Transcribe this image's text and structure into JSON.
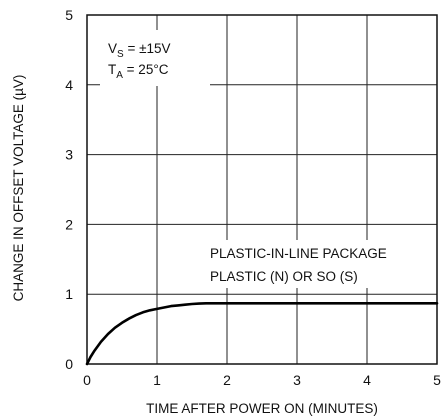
{
  "chart_data": {
    "type": "line",
    "title": "",
    "xlabel": "TIME AFTER POWER ON (MINUTES)",
    "ylabel": "CHANGE IN OFFSET VOLTAGE (µV)",
    "xlim": [
      0,
      5
    ],
    "ylim": [
      0,
      5
    ],
    "x_ticks": [
      "0",
      "1",
      "2",
      "3",
      "4",
      "5"
    ],
    "y_ticks": [
      "0",
      "1",
      "2",
      "3",
      "4",
      "5"
    ],
    "grid": true,
    "conditions": {
      "vs_prefix": "V",
      "vs_sub": "S",
      "vs_value": " = ±15V",
      "ta_prefix": "T",
      "ta_sub": "A",
      "ta_value": " = 25°C"
    },
    "annotation": {
      "line1": "PLASTIC-IN-LINE PACKAGE",
      "line2": "PLASTIC (N) OR SO (S)"
    },
    "series": [
      {
        "name": "",
        "x": [
          0,
          0.05,
          0.1,
          0.2,
          0.3,
          0.4,
          0.5,
          0.6,
          0.7,
          0.8,
          0.9,
          1.0,
          1.1,
          1.2,
          1.3,
          1.4,
          1.5,
          1.6,
          1.7,
          2.0,
          2.5,
          3.0,
          3.5,
          4.0,
          4.5,
          5.0
        ],
        "values": [
          0,
          0.1,
          0.18,
          0.32,
          0.43,
          0.52,
          0.59,
          0.65,
          0.7,
          0.74,
          0.77,
          0.79,
          0.81,
          0.83,
          0.84,
          0.85,
          0.86,
          0.865,
          0.87,
          0.87,
          0.87,
          0.87,
          0.87,
          0.87,
          0.87,
          0.87
        ]
      }
    ]
  }
}
